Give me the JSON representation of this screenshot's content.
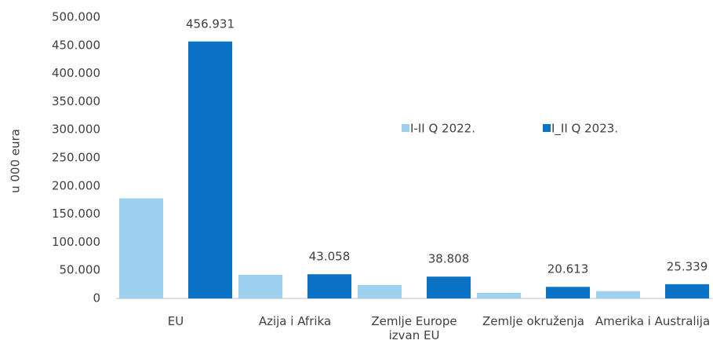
{
  "chart_data": {
    "type": "bar",
    "y_label": "u 000 eura",
    "categories": [
      "EU",
      "Azija i Afrika",
      "Zemlje Europe izvan EU",
      "Zemlje okruženja",
      "Amerika i Australija"
    ],
    "series": [
      {
        "name": "I-II Q 2022.",
        "color": "#9dcfee",
        "values": [
          178000,
          42000,
          24000,
          10000,
          13000
        ]
      },
      {
        "name": "I_II Q 2023.",
        "color": "#0b72c5",
        "values": [
          456931,
          43058,
          38808,
          20613,
          25339
        ],
        "value_labels": [
          "456.931",
          "43.058",
          "38.808",
          "20.613",
          "25.339"
        ]
      }
    ],
    "ylim": [
      0,
      500000
    ],
    "yticks": [
      0,
      {
        "value": 50000,
        "label": "50.000"
      },
      {
        "value": 100000,
        "label": "100.000"
      },
      {
        "value": 150000,
        "label": "150.000"
      },
      {
        "value": 200000,
        "label": "200.000"
      },
      {
        "value": 250000,
        "label": "250.000"
      },
      {
        "value": 300000,
        "label": "300.000"
      },
      {
        "value": 350000,
        "label": "350.000"
      },
      {
        "value": 400000,
        "label": "400.000"
      },
      {
        "value": 450000,
        "label": "450.000"
      },
      {
        "value": 500000,
        "label": "500.000"
      }
    ],
    "legend": "upper right"
  }
}
